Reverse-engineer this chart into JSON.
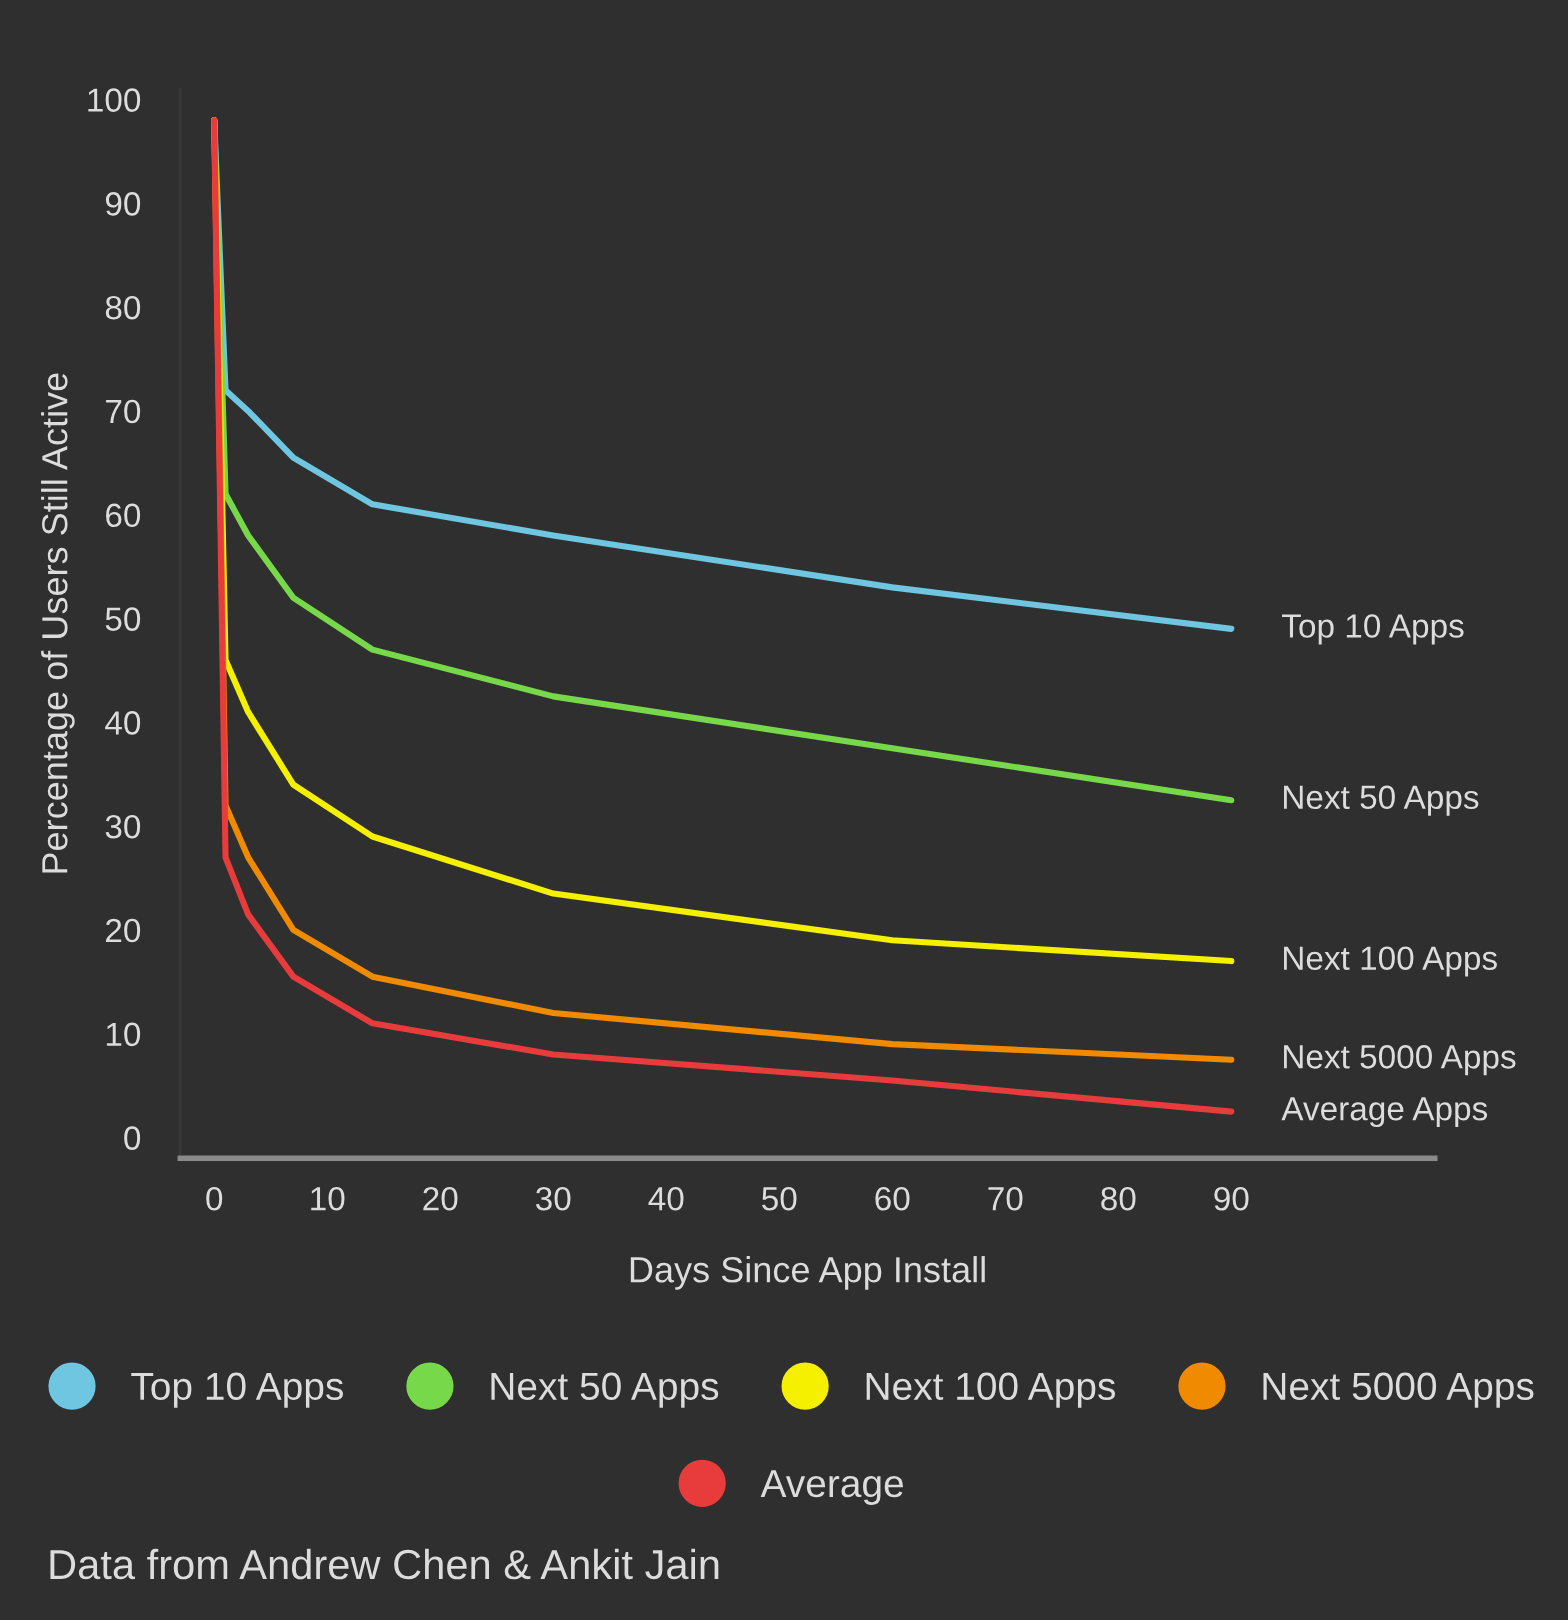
{
  "chart_data": {
    "type": "line",
    "xlabel": "Days Since App Install",
    "ylabel": "Percentage of Users Still Active",
    "x": [
      0,
      1,
      3,
      7,
      14,
      30,
      60,
      90
    ],
    "series": [
      {
        "name": "Top 10 Apps",
        "color": "#6ec6e0",
        "values": [
          98,
          72,
          70,
          65.5,
          61,
          58,
          53,
          49
        ]
      },
      {
        "name": "Next 50 Apps",
        "color": "#77d94a",
        "values": [
          98,
          62,
          58,
          52,
          47,
          42.5,
          37.5,
          32.5
        ]
      },
      {
        "name": "Next 100 Apps",
        "color": "#f4f000",
        "values": [
          98,
          46,
          41,
          34,
          29,
          23.5,
          19,
          17
        ]
      },
      {
        "name": "Next 5000 Apps",
        "color": "#f08a00",
        "values": [
          98,
          32,
          27,
          20,
          15.5,
          12,
          9,
          7.5
        ]
      },
      {
        "name": "Average",
        "color": "#e83c3c",
        "values": [
          98,
          27,
          21.5,
          15.5,
          11,
          8,
          5.5,
          2.5
        ]
      }
    ],
    "xlim": [
      -3,
      108
    ],
    "xticks": [
      0,
      10,
      20,
      30,
      40,
      50,
      60,
      70,
      80,
      90
    ],
    "ylim": [
      -2,
      101
    ],
    "yticks": [
      0,
      10,
      20,
      30,
      40,
      50,
      60,
      70,
      80,
      90,
      100
    ],
    "grid": false,
    "legend": "bottom",
    "marker": "none",
    "line_style": "solid",
    "annotations": [
      "Top 10 Apps",
      "Next 50 Apps",
      "Next 100 Apps",
      "Next 5000 Apps",
      "Average Apps",
      "Data from Andrew Chen & Ankit Jain"
    ]
  }
}
